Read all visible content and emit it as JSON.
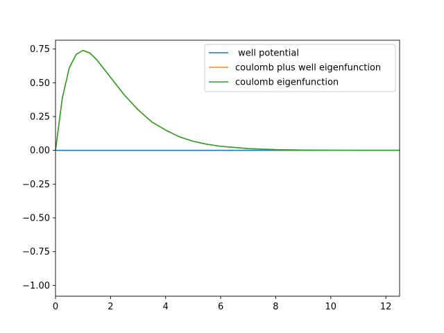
{
  "chart_data": {
    "type": "line",
    "title": "",
    "xlabel": "",
    "ylabel": "",
    "xlim": [
      0,
      12.5
    ],
    "ylim": [
      -1.08,
      0.815
    ],
    "grid": false,
    "legend_location": "upper right",
    "x_ticks": [
      0,
      2,
      4,
      6,
      8,
      10,
      12
    ],
    "x_tick_labels": [
      "0",
      "2",
      "4",
      "6",
      "8",
      "10",
      "12"
    ],
    "y_ticks": [
      0.75,
      0.5,
      0.25,
      0.0,
      -0.25,
      -0.5,
      -0.75,
      -1.0
    ],
    "y_tick_labels": [
      "0.75",
      "0.50",
      "0.25",
      "0.00",
      "−0.25",
      "−0.50",
      "−0.75",
      "−1.00"
    ],
    "series": [
      {
        "name": " well potential",
        "color": "#1f77b4",
        "x": [
          0,
          12.5
        ],
        "y": [
          0,
          0
        ]
      },
      {
        "name": "coulomb plus well eigenfunction",
        "color": "#ff7f0e",
        "x": [
          0,
          0.25,
          0.5,
          0.75,
          1,
          1.25,
          1.5,
          2,
          2.5,
          3,
          3.5,
          4,
          4.5,
          5,
          5.5,
          6,
          7,
          8,
          9,
          10,
          11,
          12,
          12.5
        ],
        "y": [
          0,
          0.39,
          0.61,
          0.71,
          0.74,
          0.72,
          0.67,
          0.54,
          0.41,
          0.3,
          0.21,
          0.15,
          0.1,
          0.067,
          0.045,
          0.03,
          0.013,
          0.005,
          0.002,
          0.001,
          0.0003,
          0.0001,
          0.0001
        ]
      },
      {
        "name": "coulomb eigenfunction",
        "color": "#2ca02c",
        "x": [
          0,
          0.25,
          0.5,
          0.75,
          1,
          1.25,
          1.5,
          2,
          2.5,
          3,
          3.5,
          4,
          4.5,
          5,
          5.5,
          6,
          7,
          8,
          9,
          10,
          11,
          12,
          12.5
        ],
        "y": [
          0,
          0.39,
          0.61,
          0.71,
          0.74,
          0.72,
          0.67,
          0.54,
          0.41,
          0.3,
          0.21,
          0.15,
          0.1,
          0.067,
          0.045,
          0.03,
          0.013,
          0.005,
          0.002,
          0.001,
          0.0003,
          0.0001,
          0.0001
        ]
      }
    ]
  }
}
